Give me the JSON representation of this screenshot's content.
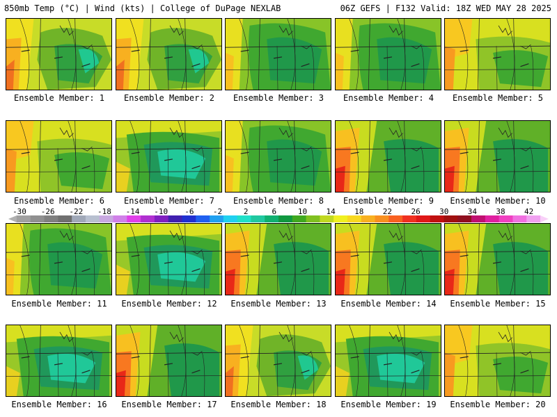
{
  "header": {
    "left": "850mb Temp (°C) | Wind (kts) | College of DuPage NEXLAB",
    "right": "06Z GEFS | F132 Valid: 18Z WED MAY 28 2025"
  },
  "colorbar": {
    "ticks": [
      "-30",
      "-26",
      "-22",
      "-18",
      "-14",
      "-10",
      "-6",
      "-2",
      "2",
      "6",
      "10",
      "14",
      "18",
      "22",
      "26",
      "30",
      "34",
      "38",
      "42"
    ],
    "colors": [
      "#a0a0a0",
      "#909090",
      "#808080",
      "#707070",
      "#a0a8b8",
      "#b8c0d0",
      "#c8a8e0",
      "#d080e8",
      "#e040e8",
      "#b030d0",
      "#8020c0",
      "#4020b0",
      "#2030d0",
      "#2060f0",
      "#20a0f0",
      "#20d0f0",
      "#20e0c8",
      "#20c8a0",
      "#10b070",
      "#109840",
      "#40a820",
      "#80c020",
      "#c0d820",
      "#f0f020",
      "#f8d820",
      "#f8b020",
      "#f89020",
      "#f86020",
      "#f03020",
      "#e01818",
      "#c01010",
      "#a01010",
      "#901020",
      "#c01070",
      "#e020a0",
      "#f040c0",
      "#f070e0",
      "#f0a0f0"
    ]
  },
  "panels": [
    {
      "label": "Ensemble Member: 1",
      "scheme": "warmwest"
    },
    {
      "label": "Ensemble Member: 2",
      "scheme": "warmwest"
    },
    {
      "label": "Ensemble Member: 3",
      "scheme": "green"
    },
    {
      "label": "Ensemble Member: 4",
      "scheme": "green"
    },
    {
      "label": "Ensemble Member: 5",
      "scheme": "yellow"
    },
    {
      "label": "Ensemble Member: 6",
      "scheme": "yellow"
    },
    {
      "label": "Ensemble Member: 7",
      "scheme": "teal"
    },
    {
      "label": "Ensemble Member: 8",
      "scheme": "green"
    },
    {
      "label": "Ensemble Member: 9",
      "scheme": "hotwest"
    },
    {
      "label": "Ensemble Member: 10",
      "scheme": "hotwest"
    },
    {
      "label": "Ensemble Member: 11",
      "scheme": "green"
    },
    {
      "label": "Ensemble Member: 12",
      "scheme": "teal"
    },
    {
      "label": "Ensemble Member: 13",
      "scheme": "hotwest"
    },
    {
      "label": "Ensemble Member: 14",
      "scheme": "hotwest"
    },
    {
      "label": "Ensemble Member: 15",
      "scheme": "hotwest"
    },
    {
      "label": "Ensemble Member: 16",
      "scheme": "teal"
    },
    {
      "label": "Ensemble Member: 17",
      "scheme": "hotwest"
    },
    {
      "label": "Ensemble Member: 18",
      "scheme": "warmwest"
    },
    {
      "label": "Ensemble Member: 19",
      "scheme": "teal"
    },
    {
      "label": "Ensemble Member: 20",
      "scheme": "yellow"
    }
  ]
}
